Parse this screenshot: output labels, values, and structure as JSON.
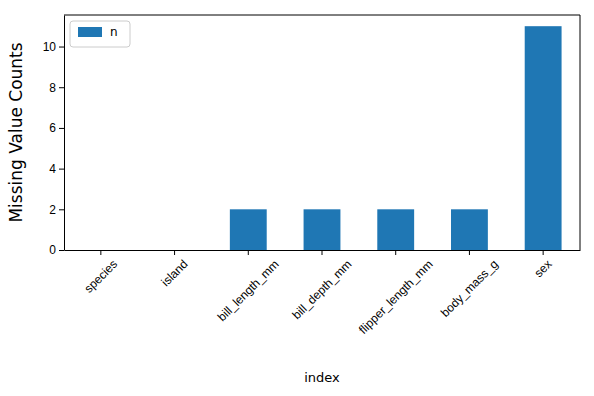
{
  "chart_data": {
    "type": "bar",
    "x_label": "index",
    "y_label": "Missing Value Counts",
    "categories": [
      "species",
      "island",
      "bill_length_mm",
      "bill_depth_mm",
      "flipper_length_mm",
      "body_mass_g",
      "sex"
    ],
    "series": [
      {
        "name": "n",
        "color": "#1f77b4",
        "values": [
          0,
          0,
          2,
          2,
          2,
          2,
          11
        ]
      }
    ],
    "ylim": [
      0,
      11.55
    ],
    "yticks": [
      0,
      2,
      4,
      6,
      8,
      10
    ],
    "legend": "upper left",
    "grid": false
  }
}
